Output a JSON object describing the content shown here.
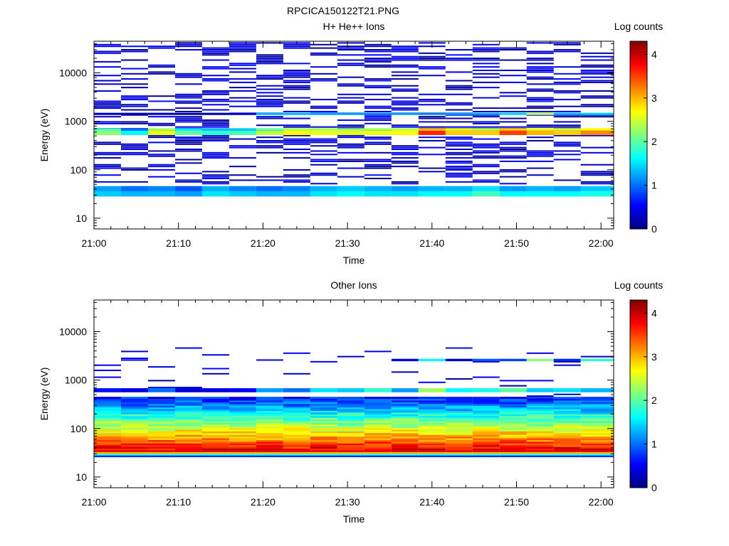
{
  "figure_title": "RPCICA150122T21.PNG",
  "colormap": [
    "#00007f",
    "#0000ff",
    "#0080ff",
    "#00ffff",
    "#80ff80",
    "#ffff00",
    "#ff8000",
    "#ff0000",
    "#7f0000"
  ],
  "chart_data": [
    {
      "type": "heatmap",
      "title": "H+ He++ Ions",
      "xlabel": "Time",
      "ylabel": "Energy (eV)",
      "x_ticks": [
        "21:00",
        "21:10",
        "21:20",
        "21:30",
        "21:40",
        "21:50",
        "22:00"
      ],
      "x_range_minutes": [
        0,
        61.5
      ],
      "y_scale": "log",
      "y_range": [
        6,
        45000
      ],
      "y_ticks": [
        "10",
        "100",
        "1000",
        "10000"
      ],
      "colorbar_label": "Log counts",
      "colorbar_range": [
        0,
        4.3
      ],
      "colorbar_ticks": [
        "0",
        "1",
        "2",
        "3",
        "4"
      ],
      "time_bins_minutes": [
        0,
        3.2,
        6.4,
        9.6,
        12.8,
        16,
        19.2,
        22.4,
        25.6,
        28.8,
        32,
        35.2,
        38.4,
        41.6,
        44.8,
        48,
        51.2,
        54.4,
        57.6,
        61.5
      ],
      "bands": [
        {
          "e_lo": 28,
          "e_hi": 36,
          "values": [
            1.4,
            1.3,
            1.3,
            1.2,
            1.5,
            1.4,
            1.3,
            1.3,
            1.5,
            1.6,
            1.5,
            1.5,
            1.6,
            1.6,
            1.9,
            1.6,
            1.6,
            1.6,
            1.7
          ]
        },
        {
          "e_lo": 36,
          "e_hi": 46,
          "values": [
            1.2,
            1.0,
            1.1,
            0.9,
            1.3,
            1.1,
            1.0,
            1.1,
            1.3,
            1.4,
            1.3,
            1.2,
            1.3,
            1.3,
            1.5,
            1.2,
            1.3,
            1.2,
            1.4
          ]
        },
        {
          "e_lo": 520,
          "e_hi": 640,
          "values": [
            2.2,
            1.6,
            2.6,
            2.0,
            1.8,
            1.9,
            2.4,
            2.7,
            2.6,
            2.6,
            2.6,
            2.7,
            3.6,
            2.9,
            2.9,
            3.5,
            3.0,
            2.9,
            3.2
          ]
        },
        {
          "e_lo": 640,
          "e_hi": 720,
          "values": [
            1.9,
            1.0,
            2.3,
            1.5,
            1.3,
            1.4,
            2.0,
            2.3,
            2.3,
            2.2,
            2.3,
            2.4,
            3.0,
            2.6,
            2.4,
            2.9,
            2.6,
            2.5,
            2.7
          ]
        },
        {
          "e_lo": 1350,
          "e_hi": 1500,
          "values": [
            0.3,
            0.2,
            0.3,
            0.2,
            0.2,
            0.3,
            1.3,
            1.3,
            1.2,
            1.2,
            1.1,
            1.2,
            1.1,
            1.2,
            1.2,
            1.4,
            2.4,
            1.3,
            1.4
          ]
        }
      ]
    },
    {
      "type": "heatmap",
      "title": "Other Ions",
      "xlabel": "Time",
      "ylabel": "Energy (eV)",
      "x_ticks": [
        "21:00",
        "21:10",
        "21:20",
        "21:30",
        "21:40",
        "21:50",
        "22:00"
      ],
      "x_range_minutes": [
        0,
        61.5
      ],
      "y_scale": "log",
      "y_range": [
        6,
        45000
      ],
      "y_ticks": [
        "10",
        "100",
        "1000",
        "10000"
      ],
      "colorbar_label": "Log counts",
      "colorbar_range": [
        0,
        4.3
      ],
      "colorbar_ticks": [
        "0",
        "1",
        "2",
        "3",
        "4"
      ],
      "time_bins_minutes": [
        0,
        3.2,
        6.4,
        9.6,
        12.8,
        16,
        19.2,
        22.4,
        25.6,
        28.8,
        32,
        35.2,
        38.4,
        41.6,
        44.8,
        48,
        51.2,
        54.4,
        57.6,
        61.5
      ],
      "energy_profile": {
        "peak_energy_ev": 34,
        "peak_value": 3.9,
        "low_cutoff_ev": 23,
        "high_cutoff_ev": 420
      },
      "bands": [
        {
          "e_lo": 560,
          "e_hi": 680,
          "values": [
            0.6,
            0.4,
            1.0,
            0.4,
            0.4,
            0.5,
            1.2,
            1.0,
            1.5,
            1.4,
            1.8,
            1.2,
            2.3,
            1.6,
            1.7,
            2.0,
            1.4,
            1.5,
            1.3
          ]
        },
        {
          "e_lo": 2450,
          "e_hi": 2750,
          "values": [
            0.0,
            0.0,
            0.0,
            0.0,
            0.0,
            0.0,
            0.0,
            0.0,
            0.0,
            0.0,
            0.0,
            0.4,
            1.6,
            0.3,
            0.9,
            0.8,
            2.2,
            0.7,
            1.8
          ]
        }
      ]
    }
  ]
}
